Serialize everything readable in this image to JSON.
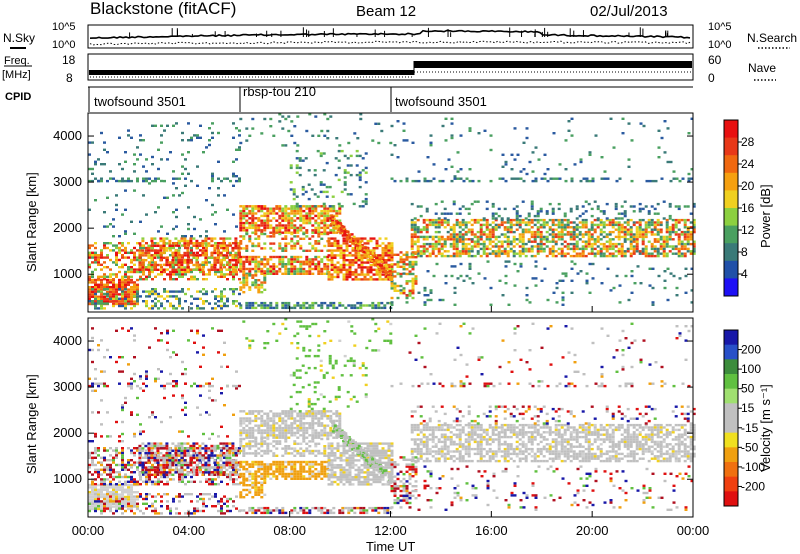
{
  "header": {
    "station": "Blackstone (fitACF)",
    "beam": "Beam 12",
    "date": "02/Jul/2013"
  },
  "summary_panels": {
    "nsky_label": "N.Sky",
    "nsearch_label": "N.Search",
    "noise_ticks": [
      "10^5",
      "10^0"
    ],
    "freq_label_top": "Freq.",
    "freq_label_bottom": "[MHz]",
    "freq_ticks": [
      "18",
      "8"
    ],
    "nave_label": "Nave",
    "nave_ticks": [
      "60",
      "0"
    ],
    "cpid_label": "CPID"
  },
  "chart_data": [
    {
      "type": "heatmap",
      "name": "power",
      "ylabel": "Slant Range [km]",
      "yticks": [
        1000,
        2000,
        3000,
        4000
      ],
      "ylim": [
        180,
        4500
      ],
      "colorbar": {
        "label": "Power [dB]",
        "ticks": [
          4,
          8,
          12,
          16,
          20,
          24,
          28
        ],
        "colors": [
          "#1e10f5",
          "#2050a8",
          "#3a7a78",
          "#4aa060",
          "#8cd040",
          "#f0d020",
          "#f5a010",
          "#f06810",
          "#e83818",
          "#e81010"
        ]
      }
    },
    {
      "type": "heatmap",
      "name": "velocity",
      "ylabel": "Slant Range [km]",
      "yticks": [
        1000,
        2000,
        3000,
        4000
      ],
      "ylim": [
        180,
        4500
      ],
      "colorbar": {
        "label": "Velocity [m s⁻¹]",
        "ticks": [
          200,
          100,
          50,
          15,
          -15,
          -50,
          -100,
          -200
        ],
        "colors": [
          "#1818a8",
          "#2850c8",
          "#3c8c3c",
          "#60c040",
          "#a0e070",
          "#c0c0c0",
          "#c0c0c0",
          "#f0e020",
          "#f0a010",
          "#f07010",
          "#f04010",
          "#e01010"
        ]
      }
    }
  ],
  "modes": [
    {
      "label": "twofsound 3501",
      "start_hour": 0,
      "end_hour": 6
    },
    {
      "label": "rbsp-tou 210",
      "start_hour": 6,
      "end_hour": 12
    },
    {
      "label": "twofsound 3501",
      "start_hour": 12,
      "end_hour": 24
    }
  ],
  "xaxis": {
    "label": "Time UT",
    "ticks": [
      "00:00",
      "04:00",
      "08:00",
      "12:00",
      "16:00",
      "20:00",
      "00:00"
    ]
  }
}
